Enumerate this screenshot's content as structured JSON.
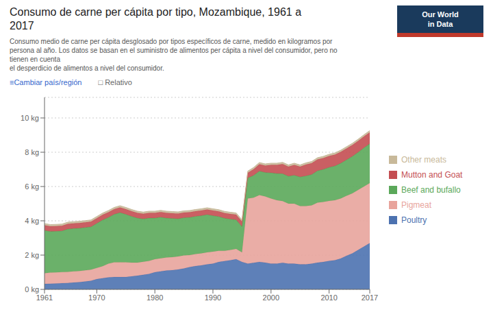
{
  "chart_data": {
    "type": "area",
    "stacked": true,
    "title": "Consumo de carne per cápita por tipo, Mozambique, 1961 a\n2017",
    "subtitle": "Consumo medio de carne per cápita desglosado por tipos específicos de carne, medido en kilogramos por\npersona al año. Los datos se basan en el suministro de alimentos per cápita a nivel del consumidor, pero no\ntienen en cuenta\nel desperdicio de alimentos a nivel del consumidor.",
    "annotations": [
      "≡Cambiar país/región",
      "□ Relativo",
      "Our World",
      "in Data"
    ],
    "x": [
      1961,
      1962,
      1963,
      1964,
      1965,
      1966,
      1967,
      1968,
      1969,
      1970,
      1971,
      1972,
      1973,
      1974,
      1975,
      1976,
      1977,
      1978,
      1979,
      1980,
      1981,
      1982,
      1983,
      1984,
      1985,
      1986,
      1987,
      1988,
      1989,
      1990,
      1991,
      1992,
      1993,
      1994,
      1995,
      1996,
      1997,
      1998,
      1999,
      2000,
      2001,
      2002,
      2003,
      2004,
      2005,
      2006,
      2007,
      2008,
      2009,
      2010,
      2011,
      2012,
      2013,
      2014,
      2015,
      2016,
      2017
    ],
    "series": [
      {
        "name": "Poultry",
        "color": "#4c72b0",
        "values": [
          0.32,
          0.33,
          0.34,
          0.36,
          0.37,
          0.4,
          0.42,
          0.46,
          0.5,
          0.6,
          0.65,
          0.7,
          0.72,
          0.72,
          0.72,
          0.76,
          0.8,
          0.85,
          0.9,
          1.0,
          1.05,
          1.1,
          1.12,
          1.16,
          1.22,
          1.3,
          1.36,
          1.4,
          1.46,
          1.5,
          1.6,
          1.65,
          1.7,
          1.76,
          1.6,
          1.5,
          1.55,
          1.6,
          1.56,
          1.5,
          1.5,
          1.55,
          1.5,
          1.5,
          1.46,
          1.46,
          1.5,
          1.56,
          1.6,
          1.66,
          1.7,
          1.8,
          1.96,
          2.1,
          2.3,
          2.5,
          2.7
        ]
      },
      {
        "name": "Pigmeat",
        "color": "#e8a49c",
        "values": [
          0.62,
          0.65,
          0.65,
          0.65,
          0.65,
          0.65,
          0.65,
          0.65,
          0.65,
          0.65,
          0.7,
          0.8,
          0.86,
          0.86,
          0.86,
          0.8,
          0.76,
          0.76,
          0.76,
          0.76,
          0.76,
          0.76,
          0.76,
          0.76,
          0.76,
          0.7,
          0.7,
          0.7,
          0.7,
          0.7,
          0.65,
          0.6,
          0.6,
          0.6,
          0.56,
          3.8,
          3.8,
          3.9,
          3.86,
          3.8,
          3.7,
          3.6,
          3.5,
          3.5,
          3.4,
          3.4,
          3.4,
          3.5,
          3.5,
          3.5,
          3.5,
          3.5,
          3.5,
          3.5,
          3.5,
          3.5,
          3.5
        ]
      },
      {
        "name": "Beef and bufallo",
        "color": "#5ba85a",
        "values": [
          2.5,
          2.4,
          2.4,
          2.4,
          2.5,
          2.5,
          2.5,
          2.5,
          2.5,
          2.6,
          2.7,
          2.7,
          2.8,
          2.9,
          2.8,
          2.7,
          2.6,
          2.5,
          2.5,
          2.4,
          2.4,
          2.3,
          2.26,
          2.2,
          2.2,
          2.2,
          2.2,
          2.2,
          2.2,
          2.1,
          2.0,
          1.9,
          1.8,
          1.7,
          1.5,
          1.2,
          1.3,
          1.4,
          1.4,
          1.5,
          1.56,
          1.6,
          1.6,
          1.66,
          1.7,
          1.76,
          1.8,
          1.86,
          1.9,
          1.96,
          2.0,
          2.06,
          2.1,
          2.16,
          2.2,
          2.26,
          2.3
        ]
      },
      {
        "name": "Mutton and Goat",
        "color": "#c44e52",
        "values": [
          0.3,
          0.3,
          0.3,
          0.3,
          0.3,
          0.3,
          0.3,
          0.3,
          0.3,
          0.3,
          0.3,
          0.3,
          0.3,
          0.3,
          0.3,
          0.3,
          0.3,
          0.3,
          0.3,
          0.3,
          0.3,
          0.3,
          0.3,
          0.3,
          0.3,
          0.3,
          0.3,
          0.3,
          0.3,
          0.3,
          0.3,
          0.3,
          0.3,
          0.3,
          0.3,
          0.3,
          0.36,
          0.4,
          0.4,
          0.46,
          0.5,
          0.56,
          0.56,
          0.6,
          0.6,
          0.66,
          0.66,
          0.66,
          0.66,
          0.66,
          0.66,
          0.66,
          0.66,
          0.66,
          0.66,
          0.66,
          0.66
        ]
      },
      {
        "name": "Other meats",
        "color": "#c8b99a",
        "values": [
          0.1,
          0.1,
          0.1,
          0.1,
          0.1,
          0.1,
          0.1,
          0.1,
          0.1,
          0.1,
          0.1,
          0.1,
          0.1,
          0.1,
          0.1,
          0.1,
          0.1,
          0.1,
          0.1,
          0.1,
          0.1,
          0.1,
          0.1,
          0.1,
          0.1,
          0.1,
          0.1,
          0.1,
          0.1,
          0.1,
          0.1,
          0.1,
          0.1,
          0.1,
          0.1,
          0.1,
          0.1,
          0.1,
          0.1,
          0.1,
          0.1,
          0.1,
          0.1,
          0.1,
          0.1,
          0.1,
          0.1,
          0.1,
          0.1,
          0.1,
          0.1,
          0.1,
          0.1,
          0.1,
          0.1,
          0.1,
          0.1
        ]
      }
    ],
    "xlim": [
      1961,
      2017
    ],
    "xticks": [
      1961,
      1970,
      1980,
      1990,
      2000,
      2010,
      2017
    ],
    "ylim": [
      0,
      11.2
    ],
    "yticks": [
      {
        "value": 0,
        "label": "0 kg"
      },
      {
        "value": 2,
        "label": "2 kg"
      },
      {
        "value": 4,
        "label": "4 kg"
      },
      {
        "value": 6,
        "label": "6 kg"
      },
      {
        "value": 8,
        "label": "8 kg"
      },
      {
        "value": 10,
        "label": "10 kg"
      }
    ],
    "grid": true,
    "legend": "right"
  }
}
